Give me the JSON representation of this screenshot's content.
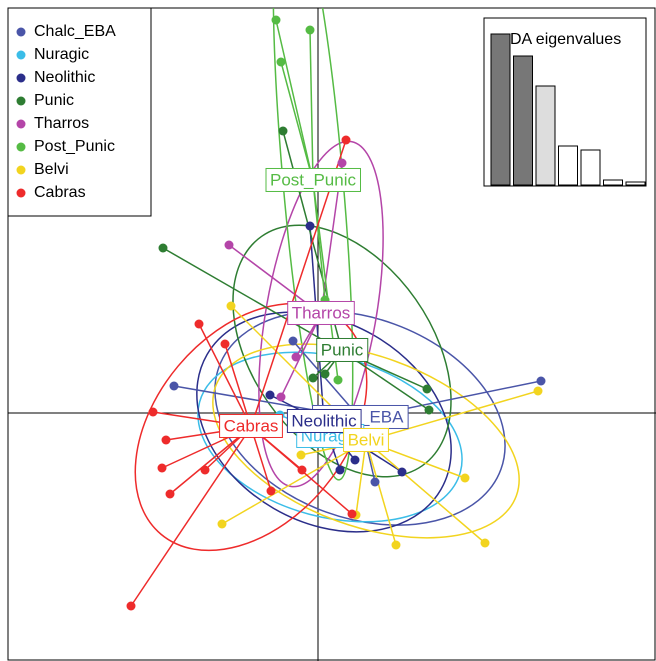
{
  "chart_data": [
    {
      "type": "scatter",
      "xlim": [
        -3.1,
        3.38
      ],
      "ylim": [
        -2.48,
        4.05
      ],
      "legend": "top-left",
      "series": [
        {
          "name": "Chalc_EBA",
          "color": "#4a55a8",
          "centroid": {
            "x": 0.42,
            "y": -0.05
          },
          "ellipse": {
            "rx": 1.5,
            "ry": 1.0,
            "angle": -20
          },
          "x": [
            -1.44,
            2.23,
            -0.25,
            0.29,
            0.57
          ],
          "y": [
            0.27,
            0.32,
            0.72,
            -0.33,
            -0.69
          ]
        },
        {
          "name": "Nuragic",
          "color": "#3bbde8",
          "centroid": {
            "x": 0.12,
            "y": -0.24
          },
          "ellipse": {
            "rx": 1.35,
            "ry": 0.8,
            "angle": -15
          },
          "x": [
            -0.18,
            0.52,
            0.07,
            -0.38
          ],
          "y": [
            -0.07,
            -0.27,
            -0.17,
            -0.02
          ]
        },
        {
          "name": "Neolithic",
          "color": "#2b2e8a",
          "centroid": {
            "x": 0.06,
            "y": -0.09
          },
          "ellipse": {
            "rx": 1.35,
            "ry": 1.0,
            "angle": -30
          },
          "x": [
            -0.08,
            0.37,
            0.22,
            0.84,
            -0.48
          ],
          "y": [
            1.87,
            -0.47,
            -0.57,
            -0.59,
            0.18
          ]
        },
        {
          "name": "Punic",
          "color": "#2e7d32",
          "centroid": {
            "x": 0.24,
            "y": 0.62
          },
          "ellipse": {
            "rx": 1.4,
            "ry": 0.9,
            "angle": -55
          },
          "x": [
            -1.55,
            -0.35,
            1.09,
            1.11,
            -0.05,
            0.07
          ],
          "y": [
            1.65,
            2.82,
            0.24,
            0.03,
            0.35,
            0.39
          ]
        },
        {
          "name": "Tharros",
          "color": "#b445a8",
          "centroid": {
            "x": 0.03,
            "y": 0.99
          },
          "ellipse": {
            "rx": 0.55,
            "ry": 1.75,
            "angle": -10
          },
          "x": [
            -0.89,
            0.24,
            -0.22,
            -0.37
          ],
          "y": [
            1.68,
            2.5,
            0.56,
            0.16
          ]
        },
        {
          "name": "Post_Punic",
          "color": "#55bb44",
          "centroid": {
            "x": -0.05,
            "y": 2.32
          },
          "ellipse": {
            "rx": 0.3,
            "ry": 3.0,
            "angle": 5
          },
          "x": [
            -0.42,
            -0.08,
            -0.37,
            0.2,
            0.07
          ],
          "y": [
            3.93,
            3.83,
            3.51,
            0.33,
            1.13
          ]
        },
        {
          "name": "Belvi",
          "color": "#f2d41f",
          "centroid": {
            "x": 0.48,
            "y": -0.28
          },
          "ellipse": {
            "rx": 1.6,
            "ry": 0.85,
            "angle": -20
          },
          "x": [
            -0.87,
            -0.96,
            -0.17,
            1.47,
            1.67,
            2.2,
            0.38,
            0.78
          ],
          "y": [
            1.07,
            -1.11,
            -0.42,
            -0.65,
            -1.3,
            0.22,
            -1.02,
            -1.32
          ]
        },
        {
          "name": "Cabras",
          "color": "#ee2b2b",
          "centroid": {
            "x": -0.67,
            "y": -0.14
          },
          "ellipse": {
            "rx": 1.4,
            "ry": 0.95,
            "angle": 50
          },
          "x": [
            -1.87,
            -1.65,
            -1.56,
            -1.52,
            -1.48,
            -1.19,
            -0.93,
            -1.13,
            -0.47,
            -0.16,
            0.28,
            0.34
          ],
          "y": [
            -1.93,
            0.01,
            -0.55,
            -0.27,
            -0.81,
            0.89,
            0.69,
            -0.57,
            -0.78,
            -0.57,
            2.73,
            -1.01
          ]
        }
      ]
    },
    {
      "type": "bar",
      "title": "DA eigenvalues",
      "values": [
        151,
        129,
        99,
        39,
        35,
        5,
        3
      ],
      "colors": [
        "#777777",
        "#777777",
        "#dddddd",
        "#ffffff",
        "#ffffff",
        "#ffffff",
        "#ffffff"
      ],
      "ylim": [
        0,
        160
      ]
    }
  ]
}
